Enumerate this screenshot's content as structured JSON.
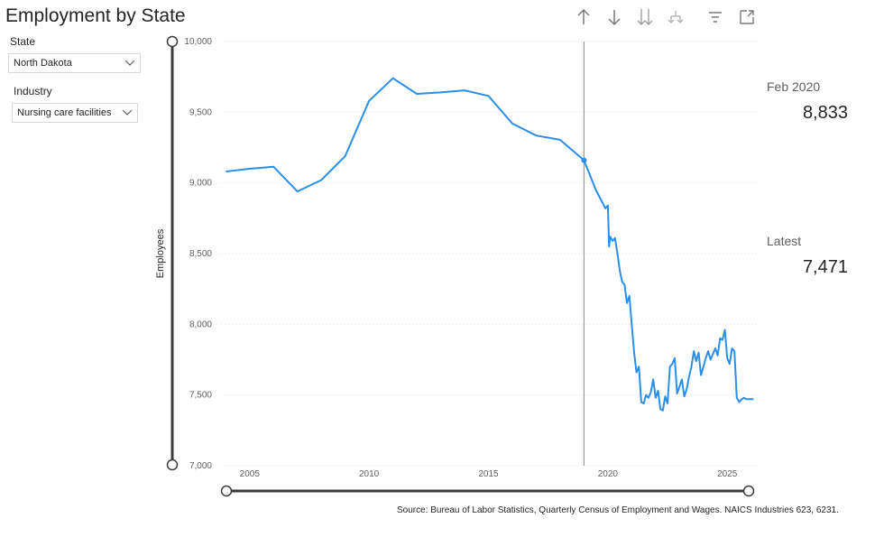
{
  "title": "Employment by State",
  "toolbar": {
    "icons": [
      "drill-up-icon",
      "drill-down-icon",
      "expand-all-icon",
      "expand-hierarchy-icon",
      "filter-icon",
      "focus-mode-icon"
    ]
  },
  "filters": {
    "state_label": "State",
    "state_value": "North Dakota",
    "industry_label": "Industry",
    "industry_value": "Nursing care facilities"
  },
  "kpis": {
    "ref_label": "Feb 2020",
    "ref_value": "8,833",
    "latest_label": "Latest",
    "latest_value": "7,471"
  },
  "source": "Source: Bureau of Labor Statistics, Quarterly Census of Employment and Wages. NAICS Industries 623, 6231.",
  "colors": {
    "line": "#2b8ee8",
    "grid": "#e1e1e1",
    "slider": "#3a3a3a",
    "marker": "#9a9a9a"
  },
  "chart_data": {
    "type": "line",
    "title": "",
    "xlabel": "",
    "ylabel": "Employees",
    "xlim": [
      2003.8,
      2026.2
    ],
    "ylim": [
      7000,
      10000
    ],
    "x_ticks": [
      2005,
      2010,
      2015,
      2020,
      2025
    ],
    "x_tick_labels": [
      "2005",
      "2010",
      "2015",
      "2020",
      "2025"
    ],
    "y_ticks": [
      7000,
      7500,
      8000,
      8500,
      9000,
      9500,
      10000
    ],
    "y_tick_labels": [
      "7,000",
      "7,500",
      "8,000",
      "8,500",
      "9,000",
      "9,500",
      "10,000"
    ],
    "grid": true,
    "marker_x": 2019.0,
    "marker_y": 9160,
    "series": [
      {
        "x": [
          2004.0,
          2005.0,
          2006.0,
          2007.0,
          2008.0,
          2009.0,
          2010.0,
          2011.0,
          2012.0,
          2013.0,
          2014.0,
          2015.0,
          2016.0,
          2017.0,
          2018.0,
          2019.0,
          2019.5,
          2019.9,
          2020.0,
          2020.05,
          2020.1,
          2020.2,
          2020.3,
          2020.4,
          2020.5,
          2020.6,
          2020.7,
          2020.8,
          2020.9,
          2021.0,
          2021.1,
          2021.2,
          2021.3,
          2021.4,
          2021.5,
          2021.6,
          2021.7,
          2021.8,
          2021.9,
          2022.0,
          2022.1,
          2022.2,
          2022.3,
          2022.4,
          2022.5,
          2022.6,
          2022.7,
          2022.8,
          2022.9,
          2023.0,
          2023.1,
          2023.2,
          2023.3,
          2023.4,
          2023.5,
          2023.6,
          2023.7,
          2023.8,
          2023.9,
          2024.0,
          2024.1,
          2024.2,
          2024.3,
          2024.4,
          2024.5,
          2024.6,
          2024.7,
          2024.8,
          2024.9,
          2025.0,
          2025.1,
          2025.2,
          2025.3,
          2025.4,
          2025.5,
          2025.6,
          2025.7,
          2025.8,
          2025.9,
          2026.0,
          2026.1
        ],
        "y": [
          9080,
          9100,
          9115,
          8940,
          9020,
          9190,
          9580,
          9740,
          9630,
          9640,
          9655,
          9615,
          9420,
          9335,
          9305,
          9160,
          8950,
          8820,
          8840,
          8550,
          8620,
          8590,
          8610,
          8500,
          8380,
          8300,
          8280,
          8150,
          8200,
          8000,
          7800,
          7660,
          7700,
          7450,
          7440,
          7500,
          7480,
          7520,
          7610,
          7480,
          7530,
          7400,
          7390,
          7490,
          7440,
          7700,
          7720,
          7760,
          7510,
          7560,
          7610,
          7490,
          7540,
          7630,
          7700,
          7810,
          7740,
          7800,
          7640,
          7700,
          7760,
          7810,
          7750,
          7790,
          7830,
          7780,
          7900,
          7890,
          7960,
          7760,
          7720,
          7830,
          7810,
          7480,
          7450,
          7470,
          7480,
          7471,
          7471,
          7471,
          7471
        ]
      }
    ]
  }
}
